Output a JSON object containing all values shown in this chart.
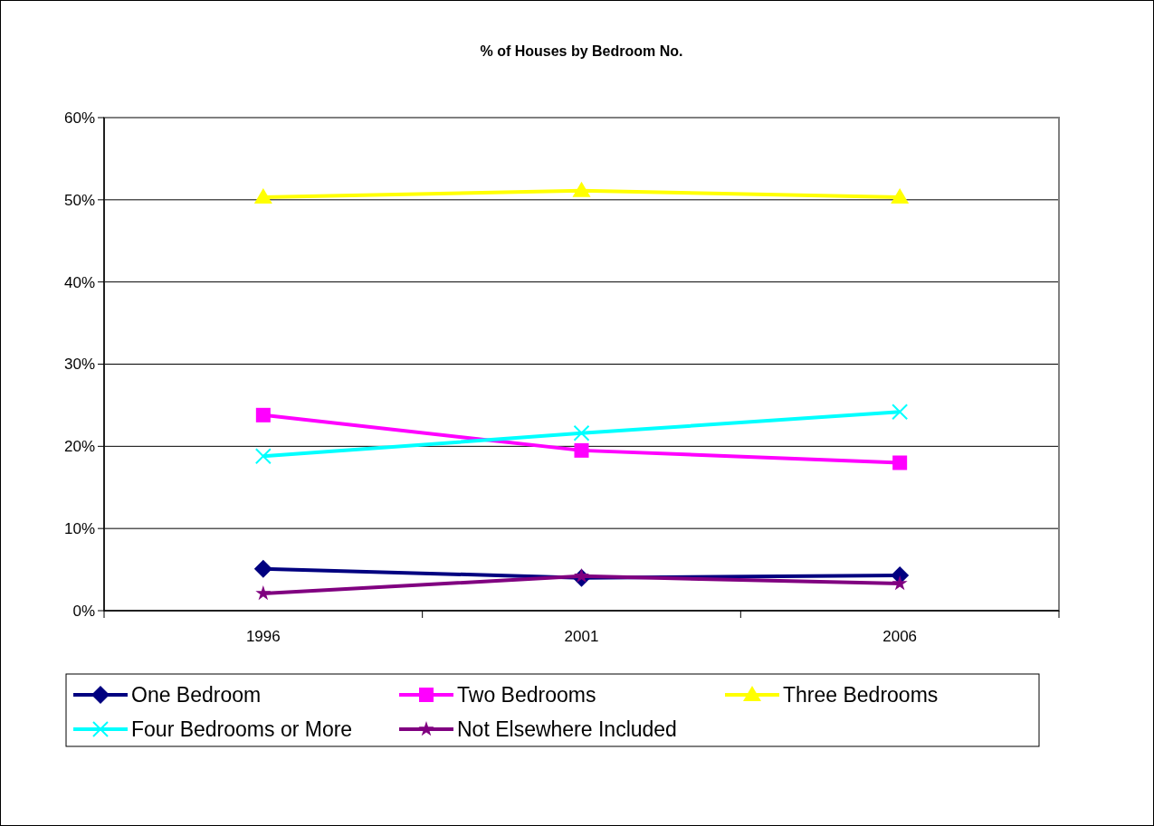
{
  "chart_data": {
    "type": "line",
    "title": "% of Houses by Bedroom No.",
    "categories": [
      "1996",
      "2001",
      "2006"
    ],
    "series": [
      {
        "name": "One Bedroom",
        "color": "#000080",
        "marker": "diamond",
        "values": [
          5.1,
          4.0,
          4.3
        ]
      },
      {
        "name": "Two Bedrooms",
        "color": "#ff00ff",
        "marker": "square",
        "values": [
          23.8,
          19.5,
          18.0
        ]
      },
      {
        "name": "Three Bedrooms",
        "color": "#ffff00",
        "marker": "triangle",
        "values": [
          50.3,
          51.1,
          50.3
        ]
      },
      {
        "name": "Four Bedrooms or More",
        "color": "#00ffff",
        "marker": "cross",
        "values": [
          18.8,
          21.6,
          24.2
        ]
      },
      {
        "name": "Not Elsewhere Included",
        "color": "#800080",
        "marker": "star",
        "values": [
          2.1,
          4.2,
          3.3
        ]
      }
    ],
    "ylim": [
      0,
      60
    ],
    "yticks": [
      {
        "value": 0,
        "label": "0%"
      },
      {
        "value": 10,
        "label": "10%"
      },
      {
        "value": 20,
        "label": "20%"
      },
      {
        "value": 30,
        "label": "30%"
      },
      {
        "value": 40,
        "label": "40%"
      },
      {
        "value": 50,
        "label": "50%"
      },
      {
        "value": 60,
        "label": "60%"
      }
    ],
    "grid": "y",
    "legend": "bottom",
    "line_style": "solid"
  }
}
